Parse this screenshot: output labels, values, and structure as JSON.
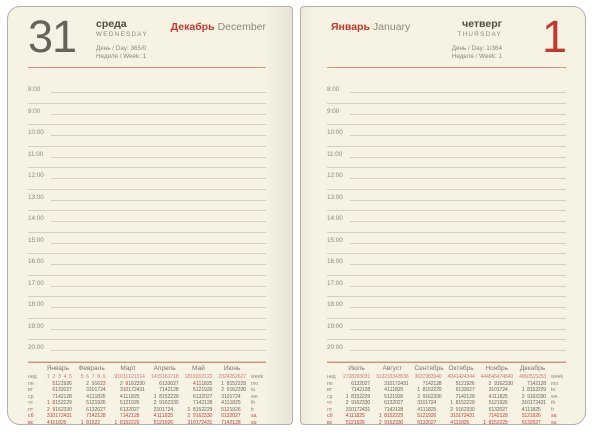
{
  "left_page": {
    "day_number": "31",
    "weekday_ru": "среда",
    "weekday_en": "WEDNESDAY",
    "day_counter": "День / Day: 365/0",
    "week_counter": "Неделя / Week: 1",
    "month_ru": "Декабрь",
    "month_en": "December"
  },
  "right_page": {
    "day_number": "1",
    "weekday_ru": "четверг",
    "weekday_en": "THURSDAY",
    "day_counter": "День / Day: 1/364",
    "week_counter": "Неделя / Week: 1",
    "month_ru": "Январь",
    "month_en": "January"
  },
  "times": [
    "8:00",
    "9:00",
    "10:00",
    "11:00",
    "12:00",
    "13:00",
    "14:00",
    "15:00",
    "16:00",
    "17:00",
    "18:00",
    "19:00",
    "20:00"
  ],
  "calendar": {
    "weekday_labels_ru": [
      "нед",
      "пн",
      "вт",
      "ср",
      "чт",
      "пт",
      "сб",
      "вс"
    ],
    "weekday_labels_en": [
      "week",
      "mo",
      "tu",
      "we",
      "th",
      "fr",
      "sa",
      "su"
    ],
    "left_months": [
      {
        "name": "Январь",
        "weeks": [
          "1",
          "2",
          "3",
          "4",
          "5"
        ],
        "rows": [
          [
            "",
            "5",
            "12",
            "19",
            "26"
          ],
          [
            "",
            "6",
            "13",
            "20",
            "27"
          ],
          [
            "",
            "7",
            "14",
            "21",
            "28"
          ],
          [
            "1",
            "8",
            "15",
            "22",
            "29"
          ],
          [
            "2",
            "9",
            "16",
            "23",
            "30"
          ],
          [
            "3",
            "10",
            "17",
            "24",
            "31"
          ],
          [
            "4",
            "11",
            "18",
            "25",
            ""
          ]
        ],
        "holidays": [
          1,
          2,
          5,
          6,
          7,
          8,
          9
        ]
      },
      {
        "name": "Февраль",
        "weeks": [
          "5",
          "6",
          "7",
          "8",
          "9"
        ],
        "rows": [
          [
            "",
            "2",
            "9",
            "16",
            "23"
          ],
          [
            "",
            "3",
            "10",
            "17",
            "24"
          ],
          [
            "",
            "4",
            "11",
            "18",
            "25"
          ],
          [
            "",
            "5",
            "12",
            "19",
            "26"
          ],
          [
            "",
            "6",
            "13",
            "20",
            "27"
          ],
          [
            "",
            "7",
            "14",
            "21",
            "28"
          ],
          [
            "1",
            "8",
            "15",
            "22",
            ""
          ]
        ],
        "holidays": [
          23
        ]
      },
      {
        "name": "Март",
        "weeks": [
          "9",
          "10",
          "11",
          "12",
          "13",
          "14"
        ],
        "rows": [
          [
            "",
            "2",
            "9",
            "16",
            "23",
            "30"
          ],
          [
            "",
            "3",
            "10",
            "17",
            "24",
            "31"
          ],
          [
            "",
            "4",
            "11",
            "18",
            "25",
            ""
          ],
          [
            "",
            "5",
            "12",
            "19",
            "26",
            ""
          ],
          [
            "",
            "6",
            "13",
            "20",
            "27",
            ""
          ],
          [
            "",
            "7",
            "14",
            "21",
            "28",
            ""
          ],
          [
            "1",
            "8",
            "15",
            "22",
            "29",
            ""
          ]
        ],
        "holidays": [
          9
        ]
      },
      {
        "name": "Апрель",
        "weeks": [
          "14",
          "15",
          "16",
          "17",
          "18"
        ],
        "rows": [
          [
            "",
            "6",
            "13",
            "20",
            "27"
          ],
          [
            "",
            "7",
            "14",
            "21",
            "28"
          ],
          [
            "1",
            "8",
            "15",
            "22",
            "29"
          ],
          [
            "2",
            "9",
            "16",
            "23",
            "30"
          ],
          [
            "3",
            "10",
            "17",
            "24",
            ""
          ],
          [
            "4",
            "11",
            "18",
            "25",
            ""
          ],
          [
            "5",
            "12",
            "19",
            "26",
            ""
          ]
        ],
        "holidays": []
      },
      {
        "name": "Май",
        "weeks": [
          "18",
          "19",
          "20",
          "21",
          "22"
        ],
        "rows": [
          [
            "",
            "4",
            "11",
            "18",
            "25"
          ],
          [
            "",
            "5",
            "12",
            "19",
            "26"
          ],
          [
            "",
            "6",
            "13",
            "20",
            "27"
          ],
          [
            "",
            "7",
            "14",
            "21",
            "28"
          ],
          [
            "1",
            "8",
            "15",
            "22",
            "29"
          ],
          [
            "2",
            "9",
            "16",
            "23",
            "30"
          ],
          [
            "3",
            "10",
            "17",
            "24",
            "31"
          ]
        ],
        "holidays": [
          1,
          4,
          11
        ]
      },
      {
        "name": "Июнь",
        "weeks": [
          "23",
          "24",
          "25",
          "26",
          "27"
        ],
        "rows": [
          [
            "1",
            "8",
            "15",
            "22",
            "29"
          ],
          [
            "2",
            "9",
            "16",
            "23",
            "30"
          ],
          [
            "3",
            "10",
            "17",
            "24",
            ""
          ],
          [
            "4",
            "11",
            "18",
            "25",
            ""
          ],
          [
            "5",
            "12",
            "19",
            "26",
            ""
          ],
          [
            "6",
            "13",
            "20",
            "27",
            ""
          ],
          [
            "7",
            "14",
            "21",
            "28",
            ""
          ]
        ],
        "holidays": [
          12
        ]
      }
    ],
    "right_months": [
      {
        "name": "Июль",
        "weeks": [
          "27",
          "28",
          "29",
          "30",
          "31"
        ],
        "rows": [
          [
            "",
            "6",
            "13",
            "20",
            "27"
          ],
          [
            "",
            "7",
            "14",
            "21",
            "28"
          ],
          [
            "1",
            "8",
            "15",
            "22",
            "29"
          ],
          [
            "2",
            "9",
            "16",
            "23",
            "30"
          ],
          [
            "3",
            "10",
            "17",
            "24",
            "31"
          ],
          [
            "4",
            "11",
            "18",
            "25",
            ""
          ],
          [
            "5",
            "12",
            "19",
            "26",
            ""
          ]
        ],
        "holidays": []
      },
      {
        "name": "Август",
        "weeks": [
          "31",
          "32",
          "33",
          "34",
          "35",
          "36"
        ],
        "rows": [
          [
            "",
            "3",
            "10",
            "17",
            "24",
            "31"
          ],
          [
            "",
            "4",
            "11",
            "18",
            "25",
            ""
          ],
          [
            "",
            "5",
            "12",
            "19",
            "26",
            ""
          ],
          [
            "",
            "6",
            "13",
            "20",
            "27",
            ""
          ],
          [
            "",
            "7",
            "14",
            "21",
            "28",
            ""
          ],
          [
            "1",
            "8",
            "15",
            "22",
            "29",
            ""
          ],
          [
            "2",
            "9",
            "16",
            "23",
            "30",
            ""
          ]
        ],
        "holidays": []
      },
      {
        "name": "Сентябрь",
        "weeks": [
          "36",
          "37",
          "38",
          "39",
          "40"
        ],
        "rows": [
          [
            "",
            "7",
            "14",
            "21",
            "28"
          ],
          [
            "1",
            "8",
            "15",
            "22",
            "29"
          ],
          [
            "2",
            "9",
            "16",
            "23",
            "30"
          ],
          [
            "3",
            "10",
            "17",
            "24",
            ""
          ],
          [
            "4",
            "11",
            "18",
            "25",
            ""
          ],
          [
            "5",
            "12",
            "19",
            "26",
            ""
          ],
          [
            "6",
            "13",
            "20",
            "27",
            ""
          ]
        ],
        "holidays": []
      },
      {
        "name": "Октябрь",
        "weeks": [
          "40",
          "41",
          "42",
          "43",
          "44"
        ],
        "rows": [
          [
            "",
            "5",
            "12",
            "19",
            "26"
          ],
          [
            "",
            "6",
            "13",
            "20",
            "27"
          ],
          [
            "",
            "7",
            "14",
            "21",
            "28"
          ],
          [
            "1",
            "8",
            "15",
            "22",
            "29"
          ],
          [
            "2",
            "9",
            "16",
            "23",
            "30"
          ],
          [
            "3",
            "10",
            "17",
            "24",
            "31"
          ],
          [
            "4",
            "11",
            "18",
            "25",
            ""
          ]
        ],
        "holidays": []
      },
      {
        "name": "Ноябрь",
        "weeks": [
          "44",
          "45",
          "46",
          "47",
          "48",
          "49"
        ],
        "rows": [
          [
            "",
            "2",
            "9",
            "16",
            "23",
            "30"
          ],
          [
            "",
            "3",
            "10",
            "17",
            "24",
            ""
          ],
          [
            "",
            "4",
            "11",
            "18",
            "25",
            ""
          ],
          [
            "",
            "5",
            "12",
            "19",
            "26",
            ""
          ],
          [
            "",
            "6",
            "13",
            "20",
            "27",
            ""
          ],
          [
            "",
            "7",
            "14",
            "21",
            "28",
            ""
          ],
          [
            "1",
            "8",
            "15",
            "22",
            "29",
            ""
          ]
        ],
        "holidays": [
          4
        ]
      },
      {
        "name": "Декабрь",
        "weeks": [
          "49",
          "50",
          "51",
          "52",
          "53"
        ],
        "rows": [
          [
            "",
            "7",
            "14",
            "21",
            "28"
          ],
          [
            "1",
            "8",
            "15",
            "22",
            "29"
          ],
          [
            "2",
            "9",
            "16",
            "23",
            "30"
          ],
          [
            "3",
            "10",
            "17",
            "24",
            "31"
          ],
          [
            "4",
            "11",
            "18",
            "25",
            ""
          ],
          [
            "5",
            "12",
            "19",
            "26",
            ""
          ],
          [
            "6",
            "13",
            "20",
            "27",
            ""
          ]
        ],
        "holidays": []
      }
    ]
  },
  "colors": {
    "paper": "#f7f3e4",
    "page_border": "#b5b3a8",
    "accent_red": "#c2392e",
    "salmon": "#d4917c",
    "line_tan": "#d9cfb6",
    "gray_text": "#8d8778",
    "dark_text": "#4f4a3e",
    "big_gray": "#64645b",
    "cal_day": "#6d675a",
    "cal_red": "#c2443a",
    "cal_week": "#c97f6f",
    "cal_month": "#7c7668"
  }
}
